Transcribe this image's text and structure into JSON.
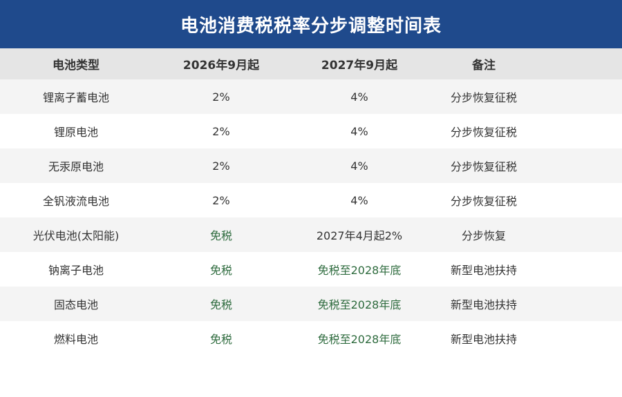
{
  "title": "电池消费税税率分步调整时间表",
  "headers": [
    "电池类型",
    "2026年9月起",
    "2027年9月起",
    "备注"
  ],
  "colors": {
    "title_bg": "#1f4a8c",
    "header_bg": "#e5e5e5",
    "row_alt_bg": "#f4f4f4",
    "exempt_text": "#2e6b3e"
  },
  "rows": [
    {
      "type": "锂离子蓄电池",
      "rate_2026": "2%",
      "rate_2027": "4%",
      "note": "分步恢复征税"
    },
    {
      "type": "锂原电池",
      "rate_2026": "2%",
      "rate_2027": "4%",
      "note": "分步恢复征税"
    },
    {
      "type": "无汞原电池",
      "rate_2026": "2%",
      "rate_2027": "4%",
      "note": "分步恢复征税"
    },
    {
      "type": "全钒液流电池",
      "rate_2026": "2%",
      "rate_2027": "4%",
      "note": "分步恢复征税"
    },
    {
      "type": "光伏电池(太阳能)",
      "rate_2026": "免税",
      "rate_2027": "2027年4月起2%",
      "note": "分步恢复"
    },
    {
      "type": "钠离子电池",
      "rate_2026": "免税",
      "rate_2027": "免税至2028年底",
      "note": "新型电池扶持"
    },
    {
      "type": "固态电池",
      "rate_2026": "免税",
      "rate_2027": "免税至2028年底",
      "note": "新型电池扶持"
    },
    {
      "type": "燃料电池",
      "rate_2026": "免税",
      "rate_2027": "免税至2028年底",
      "note": "新型电池扶持"
    }
  ]
}
